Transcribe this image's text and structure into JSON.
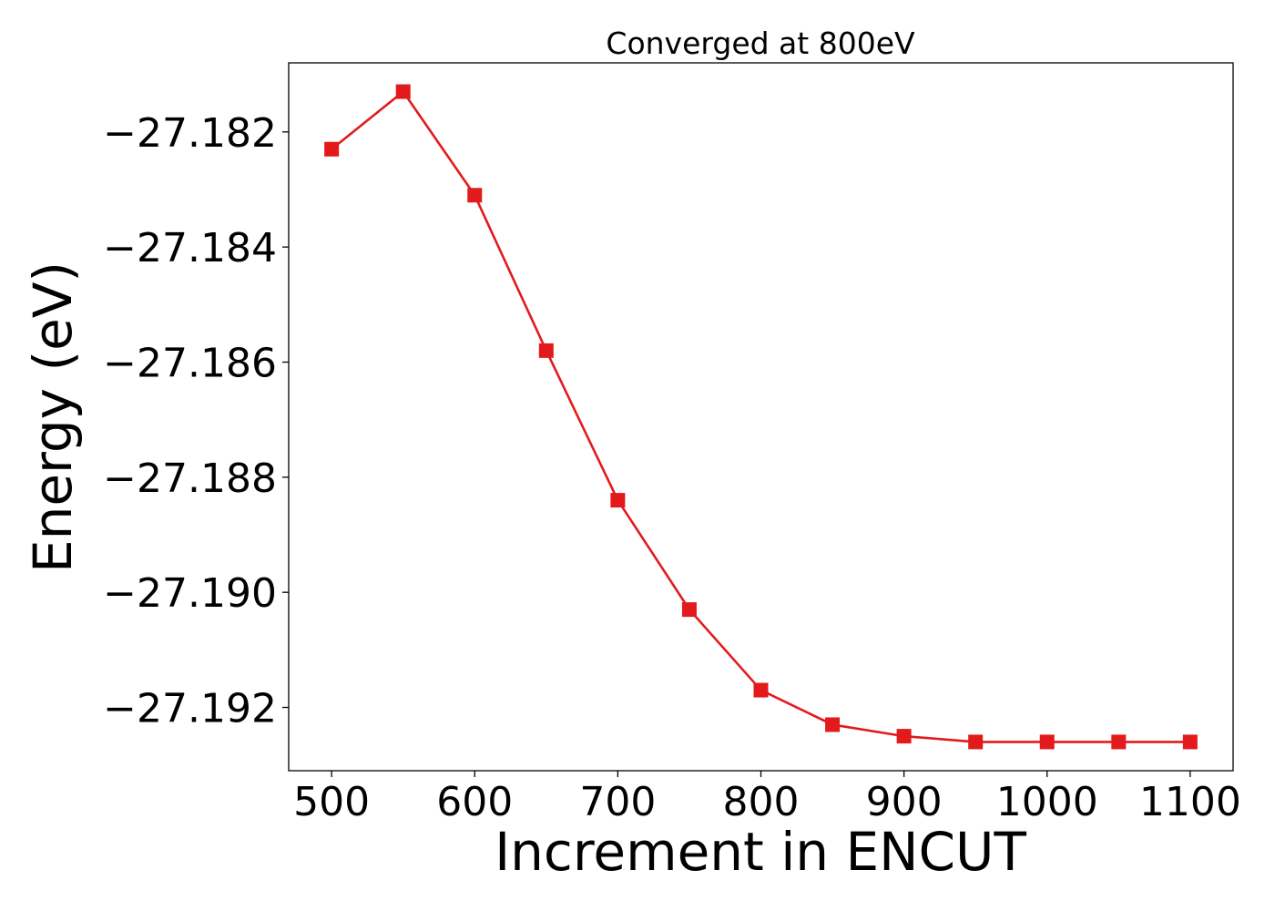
{
  "chart_data": {
    "type": "line",
    "title": "Converged at 800eV",
    "xlabel": "Increment in ENCUT",
    "ylabel": "Energy (eV)",
    "x": [
      500,
      550,
      600,
      650,
      700,
      750,
      800,
      850,
      900,
      950,
      1000,
      1050,
      1100
    ],
    "series": [
      {
        "values": [
          -27.1823,
          -27.1813,
          -27.1831,
          -27.1858,
          -27.1884,
          -27.1903,
          -27.1917,
          -27.1923,
          -27.1925,
          -27.1926,
          -27.1926,
          -27.1926,
          -27.1926
        ],
        "color": "#e31a1c",
        "marker": "square"
      }
    ],
    "xticks": [
      500,
      600,
      700,
      800,
      900,
      1000,
      1100
    ],
    "xtick_labels": [
      "500",
      "600",
      "700",
      "800",
      "900",
      "1000",
      "1100"
    ],
    "yticks": [
      -27.182,
      -27.184,
      -27.186,
      -27.188,
      -27.19,
      -27.192
    ],
    "ytick_labels": [
      "−27.182",
      "−27.184",
      "−27.186",
      "−27.188",
      "−27.190",
      "−27.192"
    ],
    "xlim": [
      470,
      1130
    ],
    "ylim": [
      -27.1931,
      -27.1808
    ],
    "grid": false,
    "legend": "none"
  }
}
